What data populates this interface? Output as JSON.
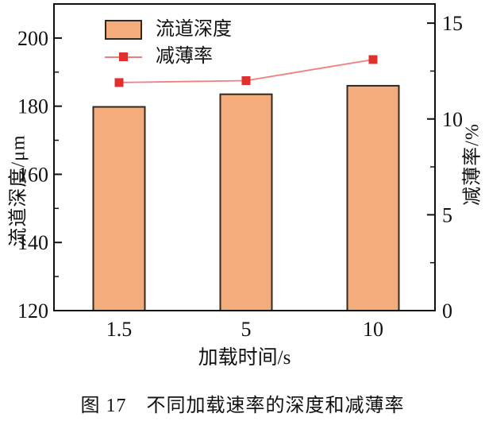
{
  "figure_caption": "图 17　不同加载速率的深度和减薄率",
  "chart_data": {
    "type": "bar",
    "categories": [
      "1.5",
      "5",
      "10"
    ],
    "series": [
      {
        "name": "流道深度",
        "type": "bar",
        "axis": "left",
        "values": [
          179.8,
          183.5,
          186.0
        ]
      },
      {
        "name": "减薄率",
        "type": "line",
        "axis": "right",
        "values": [
          11.9,
          12.0,
          13.1
        ]
      }
    ],
    "xlabel": "加载时间/s",
    "ylabel_left": "流道深度/μm",
    "ylabel_right": "减薄率/%",
    "left_axis": {
      "min": 120,
      "max": 210,
      "ticks": [
        120,
        140,
        160,
        180,
        200
      ],
      "minor_ticks": [
        130,
        150,
        170,
        190
      ]
    },
    "right_axis": {
      "min": 0,
      "max": 16,
      "ticks": [
        0,
        5,
        10,
        15
      ],
      "minor_ticks": [
        2.5,
        7.5,
        12.5
      ]
    },
    "grid": false,
    "legend_position": "top-left-inside",
    "colors": {
      "bar_fill": "#F4AC7D",
      "bar_stroke": "#33281E",
      "line": "#F17E7E",
      "marker": "#E12F2D",
      "axis": "#111111"
    }
  }
}
